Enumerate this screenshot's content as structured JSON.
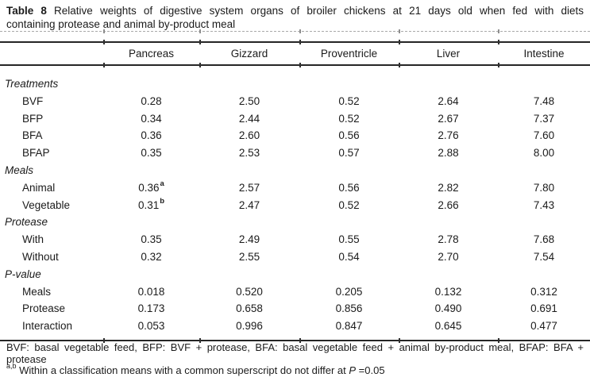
{
  "caption": {
    "label": "Table 8",
    "line1_rest": "Relative weights of digestive system organs of broiler chickens at 21 days old when fed with diets",
    "line2": "containing protease and animal by-product meal"
  },
  "table": {
    "columns": [
      "",
      "Pancreas",
      "Gizzard",
      "Proventricle",
      "Liver",
      "Intestine"
    ],
    "sections": [
      {
        "label": "Treatments",
        "rows": [
          {
            "label": "BVF",
            "values": [
              "0.28",
              "2.50",
              "0.52",
              "2.64",
              "7.48"
            ]
          },
          {
            "label": "BFP",
            "values": [
              "0.34",
              "2.44",
              "0.52",
              "2.67",
              "7.37"
            ]
          },
          {
            "label": "BFA",
            "values": [
              "0.36",
              "2.60",
              "0.56",
              "2.76",
              "7.60"
            ]
          },
          {
            "label": "BFAP",
            "values": [
              "0.35",
              "2.53",
              "0.57",
              "2.88",
              "8.00"
            ]
          }
        ]
      },
      {
        "label": "Meals",
        "rows": [
          {
            "label": "Animal",
            "values": [
              "0.36",
              "2.57",
              "0.56",
              "2.82",
              "7.80"
            ],
            "sups": [
              "a",
              "",
              "",
              "",
              ""
            ]
          },
          {
            "label": "Vegetable",
            "values": [
              "0.31",
              "2.47",
              "0.52",
              "2.66",
              "7.43"
            ],
            "sups": [
              "b",
              "",
              "",
              "",
              ""
            ]
          }
        ]
      },
      {
        "label": "Protease",
        "rows": [
          {
            "label": "With",
            "values": [
              "0.35",
              "2.49",
              "0.55",
              "2.78",
              "7.68"
            ]
          },
          {
            "label": "Without",
            "values": [
              "0.32",
              "2.55",
              "0.54",
              "2.70",
              "7.54"
            ]
          }
        ]
      },
      {
        "label": "P-value",
        "rows": [
          {
            "label": "Meals",
            "values": [
              "0.018",
              "0.520",
              "0.205",
              "0.132",
              "0.312"
            ]
          },
          {
            "label": "Protease",
            "values": [
              "0.173",
              "0.658",
              "0.856",
              "0.490",
              "0.691"
            ]
          },
          {
            "label": "Interaction",
            "values": [
              "0.053",
              "0.996",
              "0.847",
              "0.645",
              "0.477"
            ]
          }
        ]
      }
    ]
  },
  "footnotes": {
    "line1": "BVF: basal vegetable feed, BFP: BVF + protease, BFA: basal vegetable feed + animal by-product meal, BFAP: BFA +",
    "line2": "protease",
    "sig_sup": "a,b",
    "sig_text": "Within a classification means with a common superscript do not differ at",
    "p_symbol": "P",
    "p_value": "=0.05"
  }
}
